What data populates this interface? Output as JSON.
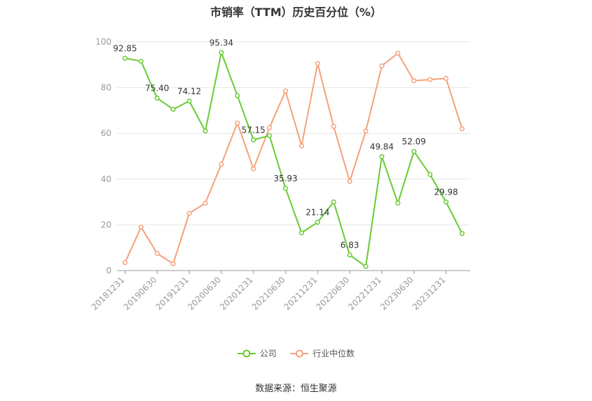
{
  "chart_data": {
    "type": "line",
    "title": "市销率（TTM）历史百分位（%）",
    "source": "数据来源：恒生聚源",
    "ylim": [
      0,
      100
    ],
    "yticks": [
      "0",
      "20",
      "40",
      "60",
      "80",
      "100"
    ],
    "xtick_labels": [
      "20181231",
      "20190630",
      "20191231",
      "20200630",
      "20201231",
      "20210630",
      "20211231",
      "20220630",
      "20221231",
      "20230630",
      "20231231"
    ],
    "legend_position": "bottom",
    "grid": true,
    "series": [
      {
        "name": "公司",
        "color": "#66cc33",
        "values": [
          92.85,
          91.5,
          75.4,
          70.5,
          74.12,
          61.0,
          95.34,
          76.5,
          57.15,
          59.0,
          35.93,
          16.5,
          21.14,
          30.0,
          6.83,
          1.8,
          49.84,
          29.5,
          52.09,
          42.0,
          29.98,
          16.2
        ],
        "labels": [
          "92.85",
          "",
          "75.40",
          "",
          "74.12",
          "",
          "95.34",
          "",
          "57.15",
          "",
          "35.93",
          "",
          "21.14",
          "",
          "6.83",
          "",
          "49.84",
          "",
          "52.09",
          "",
          "29.98",
          ""
        ]
      },
      {
        "name": "行业中位数",
        "color": "#f5a07a",
        "values": [
          3.5,
          19.0,
          7.5,
          3.0,
          25.0,
          29.5,
          46.5,
          64.5,
          44.5,
          62.5,
          78.5,
          54.5,
          90.5,
          63.0,
          39.0,
          61.0,
          89.5,
          95.0,
          83.0,
          83.5,
          84.0,
          62.0
        ]
      }
    ]
  }
}
